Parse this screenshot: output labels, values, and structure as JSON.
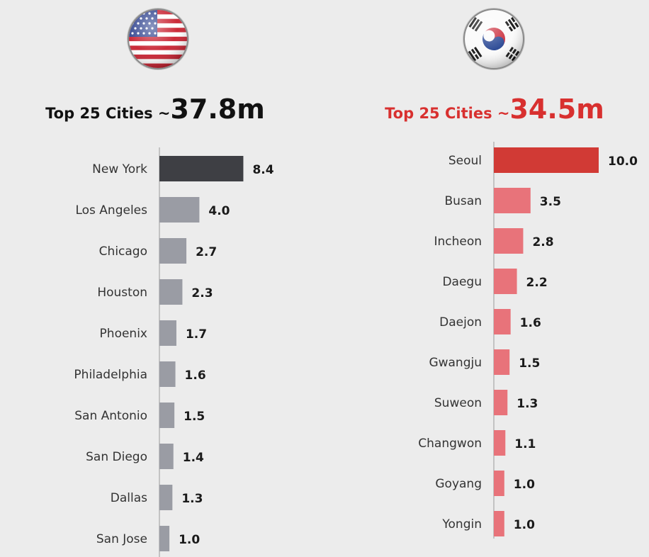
{
  "colors": {
    "background": "#ececec",
    "us_title": "#111111",
    "us_primary_bar": "#3e3f44",
    "us_bar": "#9a9ca4",
    "kr_title": "#d8302f",
    "kr_primary_bar": "#d13a35",
    "kr_bar": "#e8737a",
    "axis": "#b5b5b5"
  },
  "icons": {
    "left_flag": "us-flag-icon",
    "right_flag": "south-korea-flag-icon"
  },
  "chart_data": [
    {
      "type": "bar",
      "orientation": "horizontal",
      "title_prefix": "Top 25 Cities ~",
      "title_total": "37.8m",
      "categories": [
        "New York",
        "Los Angeles",
        "Chicago",
        "Houston",
        "Phoenix",
        "Philadelphia",
        "San Antonio",
        "San Diego",
        "Dallas",
        "San Jose"
      ],
      "values": [
        8.4,
        4.0,
        2.7,
        2.3,
        1.7,
        1.6,
        1.5,
        1.4,
        1.3,
        1.0
      ],
      "value_labels": [
        "8.4",
        "4.0",
        "2.7",
        "2.3",
        "1.7",
        "1.6",
        "1.5",
        "1.4",
        "1.3",
        "1.0"
      ],
      "xlim": [
        0,
        10
      ]
    },
    {
      "type": "bar",
      "orientation": "horizontal",
      "title_prefix": "Top 25 Cities ~",
      "title_total": "34.5m",
      "categories": [
        "Seoul",
        "Busan",
        "Incheon",
        "Daegu",
        "Daejon",
        "Gwangju",
        "Suweon",
        "Changwon",
        "Goyang",
        "Yongin"
      ],
      "values": [
        10.0,
        3.5,
        2.8,
        2.2,
        1.6,
        1.5,
        1.3,
        1.1,
        1.0,
        1.0
      ],
      "value_labels": [
        "10.0",
        "3.5",
        "2.8",
        "2.2",
        "1.6",
        "1.5",
        "1.3",
        "1.1",
        "1.0",
        "1.0"
      ],
      "xlim": [
        0,
        10
      ]
    }
  ]
}
